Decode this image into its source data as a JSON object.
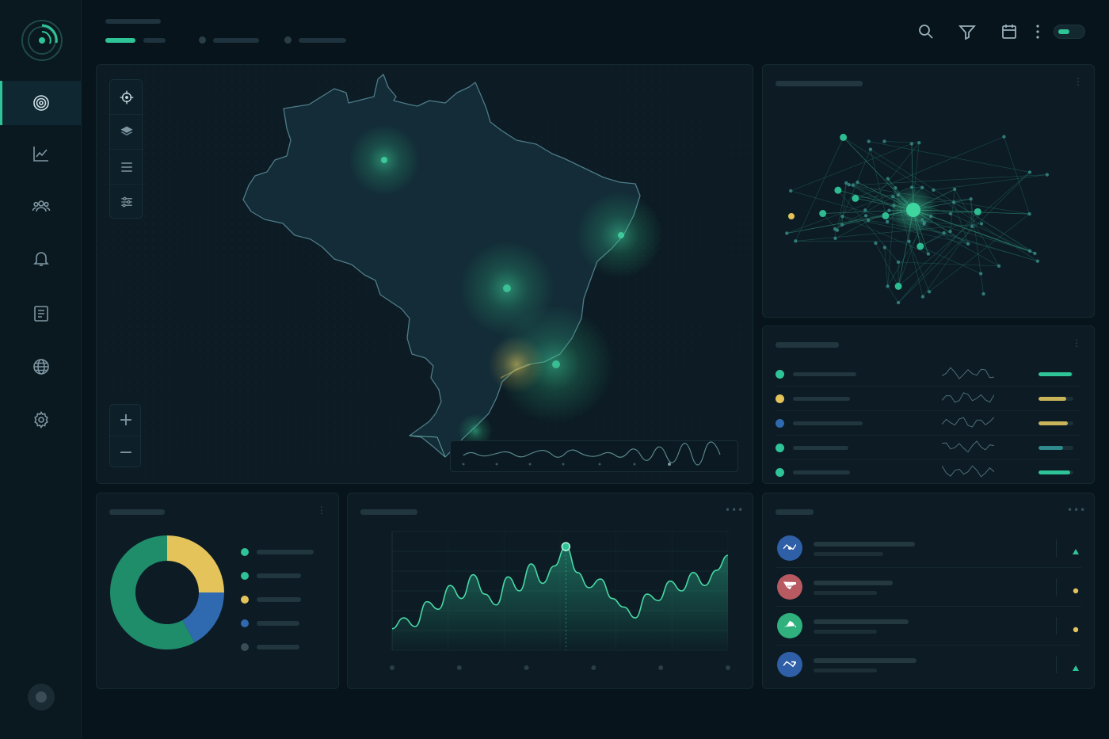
{
  "colors": {
    "accent": "#2fc497",
    "yellow": "#e4c35a",
    "blue": "#2f6ab0",
    "green_dark": "#1f8c6a",
    "muted": "#3a4c56"
  },
  "sidebar": {
    "items": [
      {
        "icon": "radar-icon",
        "active": true
      },
      {
        "icon": "analytics-icon",
        "active": false
      },
      {
        "icon": "users-icon",
        "active": false
      },
      {
        "icon": "bell-icon",
        "active": false
      },
      {
        "icon": "document-icon",
        "active": false
      },
      {
        "icon": "globe-icon",
        "active": false
      },
      {
        "icon": "gear-icon",
        "active": false
      }
    ]
  },
  "header": {
    "icons": [
      "search-icon",
      "filter-icon",
      "calendar-icon",
      "more-vertical-icon"
    ]
  },
  "map": {
    "tools": [
      "crosshair-icon",
      "layers-icon",
      "menu-icon",
      "sliders-icon"
    ],
    "zoom_in": "+",
    "zoom_out": "−"
  },
  "donut": {
    "segments": [
      {
        "color": "#e4c35a",
        "fraction": 0.25
      },
      {
        "color": "#2f6ab0",
        "fraction": 0.17
      },
      {
        "color": "#1f8c6a",
        "fraction": 0.58
      }
    ],
    "legend_colors": [
      "#2fc497",
      "#2fc497",
      "#e4c35a",
      "#2f6ab0",
      "#3a4c56"
    ]
  },
  "status_list": {
    "rows": [
      {
        "color": "#2fc497",
        "meter": 0.95,
        "meter_color": "#2fc497"
      },
      {
        "color": "#e4c35a",
        "meter": 0.8,
        "meter_color": "#c9b45a"
      },
      {
        "color": "#2f6ab0",
        "meter": 0.85,
        "meter_color": "#c9b45a"
      },
      {
        "color": "#2fc497",
        "meter": 0.7,
        "meter_color": "#2f8a8c"
      },
      {
        "color": "#2fc497",
        "meter": 0.9,
        "meter_color": "#2fc497"
      }
    ]
  },
  "chart_data": {
    "type": "area",
    "title": "",
    "xlabel": "",
    "ylabel": "",
    "grid": true,
    "x": [
      0,
      1,
      2,
      3,
      4,
      5,
      6,
      7,
      8,
      9,
      10,
      11,
      12,
      13,
      14,
      15,
      16,
      17,
      18,
      19,
      20,
      21,
      22,
      23,
      24,
      25,
      26,
      27,
      28,
      29
    ],
    "values": [
      20,
      30,
      22,
      45,
      38,
      60,
      48,
      70,
      52,
      42,
      68,
      55,
      80,
      62,
      78,
      96,
      72,
      58,
      66,
      48,
      40,
      30,
      52,
      46,
      64,
      55,
      72,
      60,
      74,
      88
    ],
    "ylim": [
      0,
      110
    ],
    "highlight_index": 15
  },
  "feed": {
    "items": [
      {
        "icon": "broadcast-icon",
        "bg": "#2f5fa6",
        "status": "up"
      },
      {
        "icon": "chat-icon",
        "bg": "#b85a62",
        "status": "dot"
      },
      {
        "icon": "play-icon",
        "bg": "#2fb07d",
        "status": "dot"
      },
      {
        "icon": "trend-icon",
        "bg": "#2f5fa6",
        "status": "up"
      }
    ]
  }
}
